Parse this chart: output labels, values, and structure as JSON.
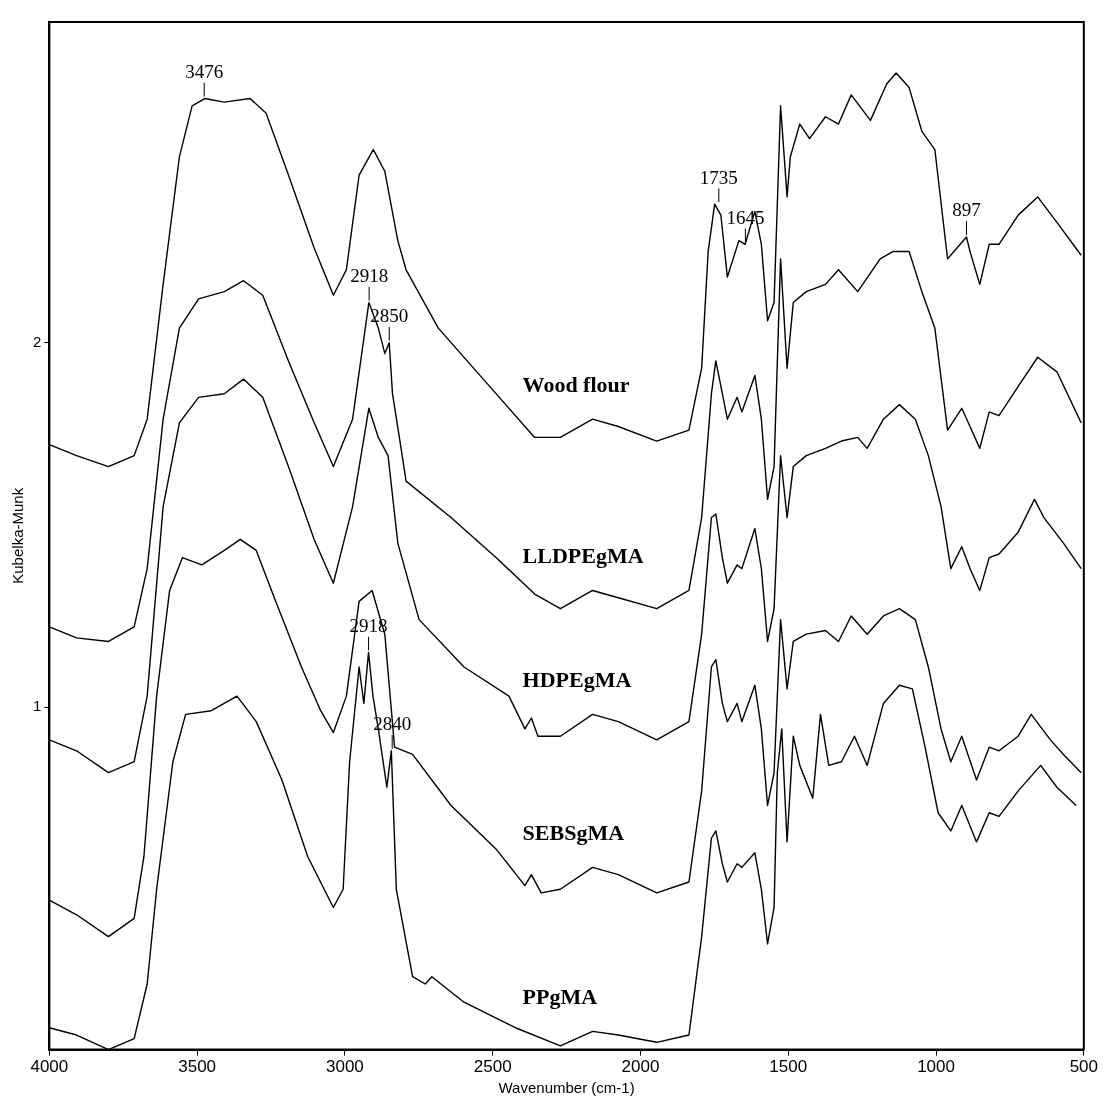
{
  "chart_data": {
    "type": "line",
    "xlabel": "Wavenumber (cm-1)",
    "ylabel": "Kubelka-Munk",
    "xlim": [
      4000,
      500
    ],
    "xticks": [
      4000,
      3500,
      3000,
      2500,
      2000,
      1500,
      1000,
      500
    ],
    "ylim": [
      0.06,
      2.88
    ],
    "yticks": [
      1,
      2
    ],
    "grid": false,
    "legend": false,
    "marker": "none",
    "line_style": "solid",
    "annotations": [
      {
        "text": "3476",
        "x": 3476,
        "y": 2.67
      },
      {
        "text": "2918",
        "x": 2918,
        "y": 2.11
      },
      {
        "text": "2850",
        "x": 2850,
        "y": 2.0
      },
      {
        "text": "1735",
        "x": 1735,
        "y": 2.38
      },
      {
        "text": "1645",
        "x": 1645,
        "y": 2.27
      },
      {
        "text": "897",
        "x": 897,
        "y": 2.29
      },
      {
        "text": "2918",
        "x": 2920,
        "y": 1.15
      },
      {
        "text": "2840",
        "x": 2840,
        "y": 0.88
      }
    ],
    "series": [
      {
        "name": "Wood flour",
        "color": "#000000",
        "x": [
          4000,
          3908,
          3800,
          3713,
          3669,
          3615,
          3560,
          3517,
          3474,
          3408,
          3321,
          3267,
          3191,
          3104,
          3039,
          2995,
          2952,
          2904,
          2865,
          2821,
          2793,
          2684,
          2532,
          2358,
          2271,
          2162,
          2075,
          1945,
          1836,
          1793,
          1771,
          1749,
          1728,
          1706,
          1667,
          1646,
          1613,
          1591,
          1570,
          1548,
          1526,
          1504,
          1493,
          1461,
          1428,
          1374,
          1330,
          1287,
          1222,
          1167,
          1135,
          1091,
          1048,
          1004,
          961,
          897,
          885,
          852,
          820,
          787,
          722,
          656,
          591,
          509
        ],
        "values": [
          1.72,
          1.69,
          1.66,
          1.69,
          1.79,
          2.16,
          2.51,
          2.65,
          2.67,
          2.66,
          2.67,
          2.63,
          2.46,
          2.26,
          2.13,
          2.2,
          2.46,
          2.53,
          2.47,
          2.28,
          2.2,
          2.04,
          1.9,
          1.74,
          1.74,
          1.79,
          1.77,
          1.73,
          1.76,
          1.93,
          2.25,
          2.38,
          2.35,
          2.18,
          2.28,
          2.27,
          2.36,
          2.27,
          2.06,
          2.11,
          2.65,
          2.4,
          2.51,
          2.6,
          2.56,
          2.62,
          2.6,
          2.68,
          2.61,
          2.71,
          2.74,
          2.7,
          2.58,
          2.53,
          2.23,
          2.29,
          2.25,
          2.16,
          2.27,
          2.27,
          2.35,
          2.4,
          2.33,
          2.24
        ]
      },
      {
        "name": "LLDPEgMA",
        "color": "#000000",
        "x": [
          4000,
          3908,
          3800,
          3713,
          3669,
          3615,
          3560,
          3495,
          3408,
          3343,
          3278,
          3191,
          3104,
          3039,
          2974,
          2919,
          2887,
          2865,
          2850,
          2839,
          2810,
          2793,
          2641,
          2488,
          2358,
          2271,
          2162,
          2075,
          1945,
          1836,
          1793,
          1760,
          1745,
          1723,
          1706,
          1673,
          1657,
          1613,
          1591,
          1570,
          1548,
          1526,
          1504,
          1483,
          1439,
          1374,
          1330,
          1265,
          1189,
          1146,
          1091,
          1048,
          1004,
          961,
          913,
          885,
          852,
          820,
          787,
          722,
          656,
          591,
          509
        ],
        "values": [
          1.22,
          1.19,
          1.18,
          1.22,
          1.38,
          1.79,
          2.04,
          2.12,
          2.14,
          2.17,
          2.13,
          1.95,
          1.78,
          1.66,
          1.79,
          2.11,
          2.04,
          1.97,
          2.0,
          1.86,
          1.71,
          1.62,
          1.52,
          1.41,
          1.31,
          1.27,
          1.32,
          1.3,
          1.27,
          1.32,
          1.52,
          1.86,
          1.95,
          1.86,
          1.79,
          1.85,
          1.81,
          1.91,
          1.79,
          1.57,
          1.66,
          2.23,
          1.93,
          2.11,
          2.14,
          2.16,
          2.2,
          2.14,
          2.23,
          2.25,
          2.25,
          2.14,
          2.04,
          1.76,
          1.82,
          1.77,
          1.71,
          1.81,
          1.8,
          1.88,
          1.96,
          1.92,
          1.78
        ]
      },
      {
        "name": "HDPEgMA",
        "color": "#000000",
        "x": [
          4000,
          3908,
          3800,
          3713,
          3669,
          3615,
          3560,
          3495,
          3408,
          3343,
          3278,
          3191,
          3104,
          3039,
          2974,
          2919,
          2887,
          2854,
          2821,
          2749,
          2597,
          2445,
          2391,
          2369,
          2347,
          2271,
          2162,
          2075,
          1945,
          1836,
          1793,
          1760,
          1745,
          1723,
          1706,
          1673,
          1657,
          1613,
          1591,
          1570,
          1548,
          1526,
          1504,
          1483,
          1439,
          1374,
          1320,
          1265,
          1233,
          1178,
          1124,
          1070,
          1026,
          983,
          950,
          913,
          885,
          852,
          820,
          787,
          722,
          667,
          635,
          569,
          509
        ],
        "values": [
          0.91,
          0.88,
          0.82,
          0.85,
          1.03,
          1.55,
          1.78,
          1.85,
          1.86,
          1.9,
          1.85,
          1.66,
          1.46,
          1.34,
          1.55,
          1.82,
          1.74,
          1.69,
          1.45,
          1.24,
          1.11,
          1.03,
          0.94,
          0.97,
          0.92,
          0.92,
          0.98,
          0.96,
          0.91,
          0.96,
          1.2,
          1.52,
          1.53,
          1.41,
          1.34,
          1.39,
          1.38,
          1.49,
          1.38,
          1.18,
          1.27,
          1.69,
          1.52,
          1.66,
          1.69,
          1.71,
          1.73,
          1.74,
          1.71,
          1.79,
          1.83,
          1.79,
          1.69,
          1.55,
          1.38,
          1.44,
          1.38,
          1.32,
          1.41,
          1.42,
          1.48,
          1.57,
          1.52,
          1.45,
          1.38
        ]
      },
      {
        "name": "SEBSgMA",
        "color": "#000000",
        "x": [
          4000,
          3908,
          3800,
          3713,
          3680,
          3637,
          3593,
          3550,
          3484,
          3408,
          3354,
          3300,
          3234,
          3147,
          3082,
          3039,
          2995,
          2952,
          2908,
          2865,
          2832,
          2771,
          2641,
          2488,
          2391,
          2369,
          2336,
          2271,
          2162,
          2075,
          1945,
          1836,
          1793,
          1760,
          1745,
          1723,
          1706,
          1673,
          1657,
          1613,
          1591,
          1570,
          1548,
          1526,
          1504,
          1483,
          1439,
          1374,
          1330,
          1287,
          1233,
          1178,
          1124,
          1070,
          1026,
          983,
          950,
          913,
          863,
          820,
          787,
          722,
          678,
          613,
          569,
          509
        ],
        "values": [
          0.47,
          0.43,
          0.37,
          0.42,
          0.59,
          1.03,
          1.32,
          1.41,
          1.39,
          1.43,
          1.46,
          1.43,
          1.29,
          1.11,
          0.99,
          0.93,
          1.03,
          1.29,
          1.32,
          1.2,
          0.89,
          0.87,
          0.73,
          0.61,
          0.51,
          0.54,
          0.49,
          0.5,
          0.56,
          0.54,
          0.49,
          0.52,
          0.77,
          1.11,
          1.13,
          1.01,
          0.96,
          1.01,
          0.96,
          1.06,
          0.94,
          0.73,
          0.82,
          1.24,
          1.05,
          1.18,
          1.2,
          1.21,
          1.18,
          1.25,
          1.2,
          1.25,
          1.27,
          1.24,
          1.11,
          0.94,
          0.85,
          0.92,
          0.8,
          0.89,
          0.88,
          0.92,
          0.98,
          0.91,
          0.87,
          0.82
        ]
      },
      {
        "name": "PPgMA",
        "color": "#000000",
        "x": [
          4000,
          3908,
          3800,
          3713,
          3669,
          3637,
          3582,
          3539,
          3452,
          3365,
          3300,
          3213,
          3126,
          3039,
          3006,
          2984,
          2952,
          2936,
          2920,
          2905,
          2887,
          2858,
          2843,
          2826,
          2771,
          2728,
          2706,
          2597,
          2423,
          2271,
          2162,
          2075,
          1945,
          1836,
          1793,
          1760,
          1745,
          1723,
          1706,
          1673,
          1657,
          1613,
          1591,
          1570,
          1548,
          1537,
          1522,
          1504,
          1483,
          1461,
          1417,
          1391,
          1363,
          1320,
          1276,
          1233,
          1178,
          1124,
          1080,
          1037,
          993,
          950,
          913,
          863,
          820,
          787,
          722,
          646,
          591,
          526
        ],
        "values": [
          0.12,
          0.1,
          0.06,
          0.09,
          0.24,
          0.5,
          0.85,
          0.98,
          0.99,
          1.03,
          0.96,
          0.8,
          0.59,
          0.45,
          0.5,
          0.85,
          1.11,
          1.01,
          1.15,
          1.03,
          0.94,
          0.78,
          0.88,
          0.5,
          0.26,
          0.24,
          0.26,
          0.19,
          0.12,
          0.07,
          0.11,
          0.1,
          0.08,
          0.1,
          0.37,
          0.64,
          0.66,
          0.57,
          0.52,
          0.57,
          0.56,
          0.6,
          0.5,
          0.35,
          0.45,
          0.82,
          0.94,
          0.63,
          0.92,
          0.84,
          0.75,
          0.98,
          0.84,
          0.85,
          0.92,
          0.84,
          1.01,
          1.06,
          1.05,
          0.89,
          0.71,
          0.66,
          0.73,
          0.63,
          0.71,
          0.7,
          0.77,
          0.84,
          0.78,
          0.73
        ]
      }
    ]
  }
}
